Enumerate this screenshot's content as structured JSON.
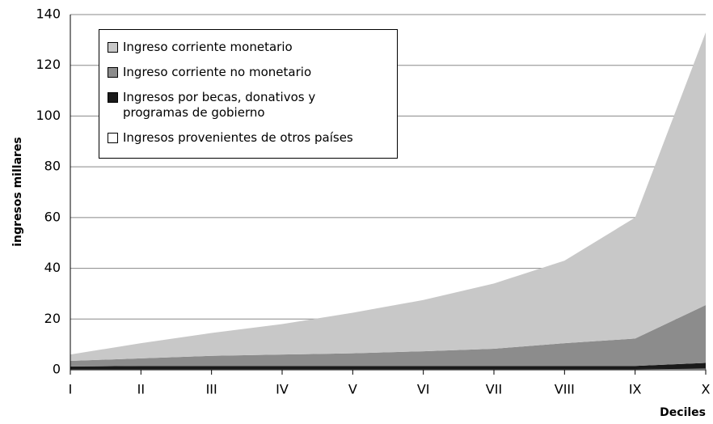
{
  "chart_data": {
    "type": "stacked_area",
    "x_label": "Deciles",
    "y_label": "ingresos millares",
    "categories": [
      "I",
      "II",
      "III",
      "IV",
      "V",
      "VI",
      "VII",
      "VIII",
      "IX",
      "X"
    ],
    "series": [
      {
        "name": "Ingreso corriente monetario",
        "color": "#c8c8c8",
        "values": [
          2.5,
          6,
          9,
          12,
          16,
          20.2,
          25.7,
          32.5,
          47.7,
          107.5
        ]
      },
      {
        "name": "Ingreso corriente no monetario",
        "color": "#8c8c8c",
        "values": [
          2.2,
          3,
          4,
          4.5,
          5,
          5.8,
          6.8,
          9,
          10.8,
          22.8
        ]
      },
      {
        "name": "Ingresos por becas, donativos y programas de gobierno",
        "color": "#1a1a1a",
        "values": [
          1,
          1.2,
          1.2,
          1.2,
          1.2,
          1.2,
          1.2,
          1.2,
          1.2,
          2.2
        ]
      },
      {
        "name": "Ingresos provenientes de otros países",
        "color": "#ffffff",
        "values": [
          0.3,
          0.3,
          0.3,
          0.3,
          0.3,
          0.3,
          0.3,
          0.3,
          0.3,
          0.5
        ]
      }
    ],
    "ylim": [
      0,
      140
    ],
    "yticks": [
      0,
      20,
      40,
      60,
      80,
      100,
      120,
      140
    ],
    "grid": true
  }
}
